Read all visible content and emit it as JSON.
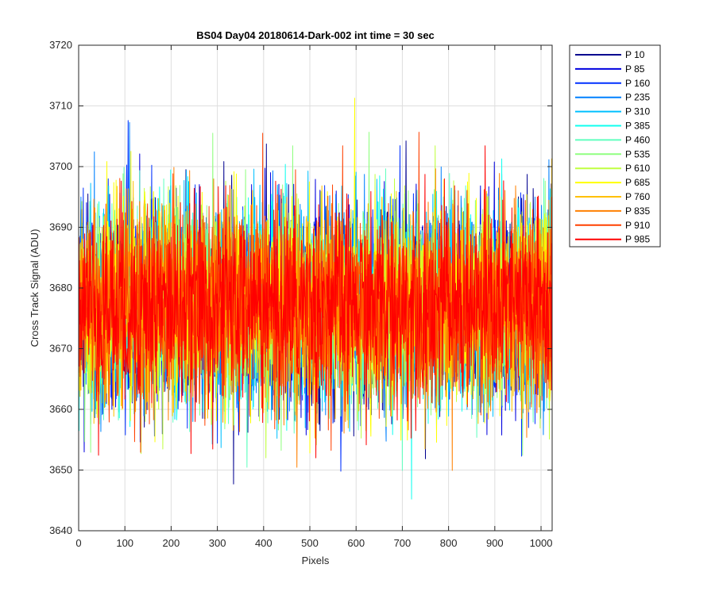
{
  "chart_data": {
    "type": "line",
    "title": "BS04 Day04 20180614-Dark-002 int time = 30 sec",
    "xlabel": "Pixels",
    "ylabel": "Cross Track Signal (ADU)",
    "xlim": [
      0,
      1024
    ],
    "ylim": [
      3640,
      3720
    ],
    "x_ticks": [
      0,
      100,
      200,
      300,
      400,
      500,
      600,
      700,
      800,
      900,
      1000
    ],
    "y_ticks": [
      3640,
      3650,
      3660,
      3670,
      3680,
      3690,
      3700,
      3710,
      3720
    ],
    "grid": true,
    "legend_position": "outside-top-right",
    "noise": {
      "mean": 3677,
      "sigma": 8,
      "min_observed": 3643,
      "max_observed": 3712
    },
    "series": [
      {
        "name": "P 10",
        "color": "#00008f"
      },
      {
        "name": "P 85",
        "color": "#0000df"
      },
      {
        "name": "P 160",
        "color": "#0030ff"
      },
      {
        "name": "P 235",
        "color": "#0080ff"
      },
      {
        "name": "P 310",
        "color": "#00c0ff"
      },
      {
        "name": "P 385",
        "color": "#10ffef"
      },
      {
        "name": "P 460",
        "color": "#60ffbf"
      },
      {
        "name": "P 535",
        "color": "#90ff80"
      },
      {
        "name": "P 610",
        "color": "#c0ff40"
      },
      {
        "name": "P 685",
        "color": "#ffff00"
      },
      {
        "name": "P 760",
        "color": "#ffc000"
      },
      {
        "name": "P 835",
        "color": "#ff8000"
      },
      {
        "name": "P 910",
        "color": "#ff4000"
      },
      {
        "name": "P 985",
        "color": "#ff0000"
      }
    ]
  }
}
